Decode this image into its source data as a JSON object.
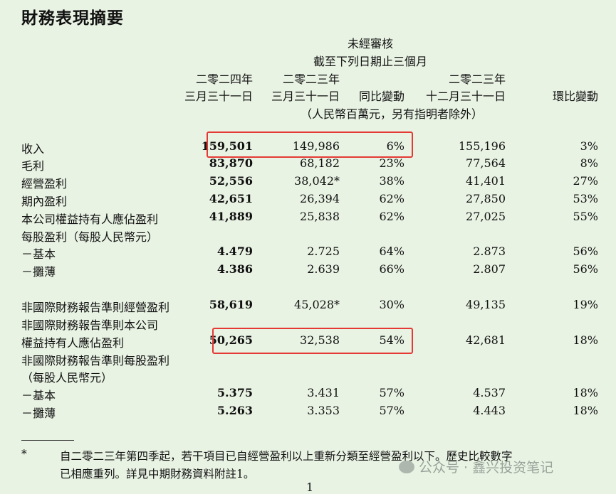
{
  "title": "財務表現摘要",
  "header": {
    "unaudited": "未經審核",
    "period": "截至下列日期止三個月",
    "col1_year": "二零二四年",
    "col1_date": "三月三十一日",
    "col2_year": "二零二三年",
    "col2_date": "三月三十一日",
    "col3": "同比變動",
    "col4_year": "二零二三年",
    "col4_date": "十二月三十一日",
    "col5": "環比變動",
    "unit": "（人民幣百萬元，另有指明者除外）"
  },
  "rows": [
    {
      "label": "收入",
      "v1": "159,501",
      "v2": "149,986",
      "v3": "6%",
      "v4": "155,196",
      "v5": "3%"
    },
    {
      "label": "毛利",
      "v1": "83,870",
      "v2": "68,182",
      "v3": "23%",
      "v4": "77,564",
      "v5": "8%"
    },
    {
      "label": "經營盈利",
      "v1": "52,556",
      "v2": "38,042*",
      "v3": "38%",
      "v4": "41,401",
      "v5": "27%"
    },
    {
      "label": "期內盈利",
      "v1": "42,651",
      "v2": "26,394",
      "v3": "62%",
      "v4": "27,850",
      "v5": "53%"
    },
    {
      "label": "本公司權益持有人應佔盈利",
      "v1": "41,889",
      "v2": "25,838",
      "v3": "62%",
      "v4": "27,025",
      "v5": "55%"
    },
    {
      "label": "每股盈利（每股人民幣元）",
      "v1": "",
      "v2": "",
      "v3": "",
      "v4": "",
      "v5": ""
    },
    {
      "label": "－基本",
      "v1": "4.479",
      "v2": "2.725",
      "v3": "64%",
      "v4": "2.873",
      "v5": "56%"
    },
    {
      "label": "－攤薄",
      "v1": "4.386",
      "v2": "2.639",
      "v3": "66%",
      "v4": "2.807",
      "v5": "56%"
    },
    {
      "label": "非國際財務報告準則經營盈利",
      "v1": "58,619",
      "v2": "45,028*",
      "v3": "30%",
      "v4": "49,135",
      "v5": "19%"
    },
    {
      "label": "非國際財務報告準則本公司",
      "v1": "",
      "v2": "",
      "v3": "",
      "v4": "",
      "v5": ""
    },
    {
      "label": "權益持有人應佔盈利",
      "v1": "50,265",
      "v2": "32,538",
      "v3": "54%",
      "v4": "42,681",
      "v5": "18%"
    },
    {
      "label": "非國際財務報告準則每股盈利",
      "v1": "",
      "v2": "",
      "v3": "",
      "v4": "",
      "v5": ""
    },
    {
      "label": "（每股人民幣元）",
      "v1": "",
      "v2": "",
      "v3": "",
      "v4": "",
      "v5": ""
    },
    {
      "label": "－基本",
      "v1": "5.375",
      "v2": "3.431",
      "v3": "57%",
      "v4": "4.537",
      "v5": "18%"
    },
    {
      "label": "－攤薄",
      "v1": "5.263",
      "v2": "3.353",
      "v3": "57%",
      "v4": "4.443",
      "v5": "18%"
    }
  ],
  "footnote": {
    "marker": "*",
    "line1": "自二零二三年第四季起，若干項目已自經營盈利以上重新分類至經營盈利以下。歷史比較數字",
    "line2": "已相應重列。詳見中期財務資料附註1。"
  },
  "watermark": "公众号 · 鑫兴投资笔记",
  "page_number": "1",
  "highlight_color": "#e53935"
}
